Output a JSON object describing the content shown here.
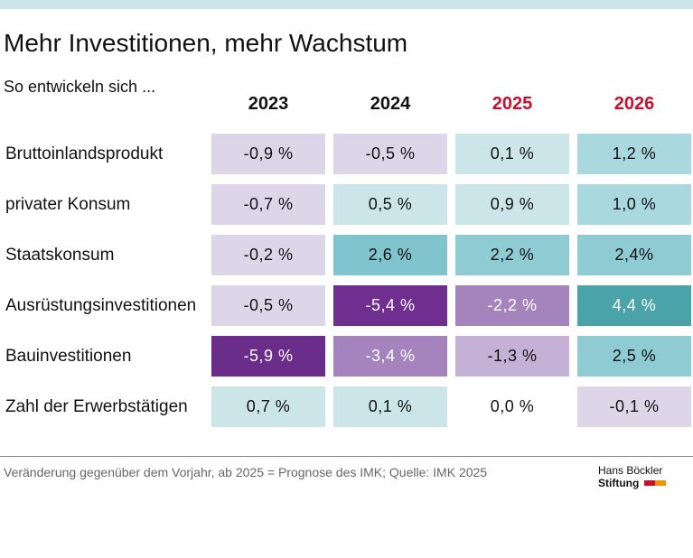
{
  "header": {
    "title": "Mehr Investitionen, mehr Wachstum",
    "subtitle": "So entwickeln sich ..."
  },
  "table": {
    "columns": [
      {
        "label": "2023",
        "color": "#111111"
      },
      {
        "label": "2024",
        "color": "#111111"
      },
      {
        "label": "2025",
        "color": "#c8102e"
      },
      {
        "label": "2026",
        "color": "#c8102e"
      }
    ],
    "rows": [
      {
        "label": "Bruttoinlandsprodukt",
        "cells": [
          "-0,9 %",
          "-0,5 %",
          "0,1 %",
          "1,2 %"
        ],
        "colors": [
          "#ddd5e8",
          "#ddd5e8",
          "#cbe5e9",
          "#a9d8de"
        ]
      },
      {
        "label": "privater Konsum",
        "cells": [
          "-0,7 %",
          "0,5 %",
          "0,9 %",
          "1,0 %"
        ],
        "colors": [
          "#ddd5e8",
          "#cbe5e9",
          "#cbe5e9",
          "#a9d8de"
        ]
      },
      {
        "label": "Staatskonsum",
        "cells": [
          "-0,2 %",
          "2,6 %",
          "2,2 %",
          "2,4%"
        ],
        "colors": [
          "#ddd5e8",
          "#80c4cd",
          "#8ecbd3",
          "#8ecbd3"
        ]
      },
      {
        "label": "Ausrüstungsinvestitionen",
        "cells": [
          "-0,5 %",
          "-5,4 %",
          "-2,2 %",
          "4,4 %"
        ],
        "colors": [
          "#ddd5e8",
          "#6e2f8e",
          "#a584bd",
          "#4aa3a8"
        ]
      },
      {
        "label": "Bauinvestitionen",
        "cells": [
          "-5,9 %",
          "-3,4 %",
          "-1,3 %",
          "2,5 %"
        ],
        "colors": [
          "#6b2d8a",
          "#a584bd",
          "#c5b0d6",
          "#8ecbd3"
        ]
      },
      {
        "label": "Zahl der Erwerbstätigen",
        "cells": [
          "0,7 %",
          "0,1 %",
          "0,0 %",
          "-0,1 %"
        ],
        "colors": [
          "#cbe5e9",
          "#cbe5e9",
          "#ffffff",
          "#ddd5e8"
        ]
      }
    ]
  },
  "footer": {
    "note": "Veränderung gegenüber dem Vorjahr, ab 2025 = Prognose des IMK; Quelle: IMK 2025",
    "logo_line1": "Hans Böckler",
    "logo_line2": "Stiftung"
  }
}
